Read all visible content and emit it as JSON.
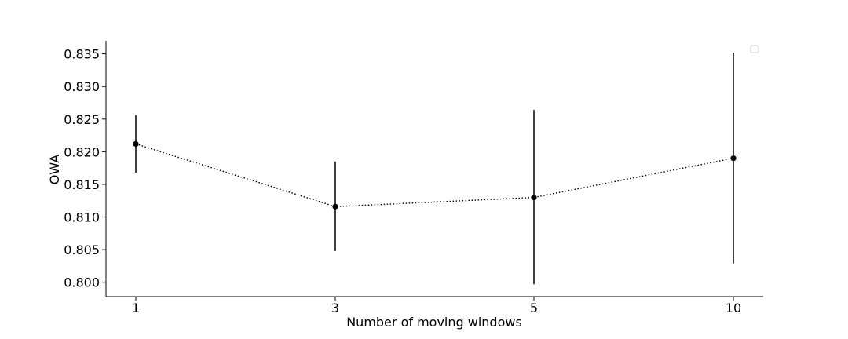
{
  "chart_data": {
    "type": "line",
    "title": "",
    "xlabel": "Number of moving windows",
    "ylabel": "OWA",
    "categories": [
      "1",
      "3",
      "5",
      "10"
    ],
    "series": [
      {
        "values": [
          0.8212,
          0.8116,
          0.813,
          0.819
        ],
        "error_low": [
          0.8168,
          0.8048,
          0.7997,
          0.8029
        ],
        "error_high": [
          0.8256,
          0.8185,
          0.8264,
          0.8352
        ],
        "color": "#000000",
        "line_style": "dotted",
        "marker": "circle"
      }
    ],
    "yticks": [
      0.8,
      0.805,
      0.81,
      0.815,
      0.82,
      0.825,
      0.83,
      0.835
    ],
    "ytick_labels": [
      "0.800",
      "0.805",
      "0.810",
      "0.815",
      "0.820",
      "0.825",
      "0.830",
      "0.835"
    ],
    "ylim": [
      0.7978,
      0.837
    ],
    "grid": false,
    "legend": {
      "placement": "top-right",
      "entries": []
    }
  }
}
